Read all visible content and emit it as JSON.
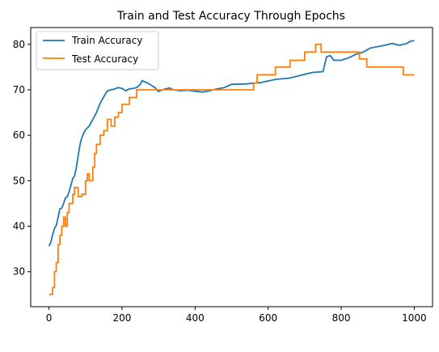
{
  "chart_data": {
    "type": "line",
    "title": "Train and Test Accuracy Through Epochs",
    "xlabel": "",
    "ylabel": "",
    "xlim": [
      -50,
      1050
    ],
    "ylim": [
      22.3,
      83.7
    ],
    "xticks": [
      0,
      200,
      400,
      600,
      800,
      1000
    ],
    "yticks": [
      30,
      40,
      50,
      60,
      70,
      80
    ],
    "grid": false,
    "legend": {
      "position": "top-left"
    },
    "series": [
      {
        "name": "Train Accuracy",
        "color": "#1f77b4",
        "step": false,
        "points": [
          [
            0,
            35.6
          ],
          [
            5,
            36.5
          ],
          [
            10,
            38.2
          ],
          [
            15,
            39.5
          ],
          [
            20,
            40.2
          ],
          [
            25,
            42
          ],
          [
            30,
            43.8
          ],
          [
            35,
            44
          ],
          [
            40,
            45
          ],
          [
            45,
            46.2
          ],
          [
            50,
            46.5
          ],
          [
            55,
            47.5
          ],
          [
            60,
            49
          ],
          [
            65,
            50.5
          ],
          [
            70,
            51
          ],
          [
            75,
            53
          ],
          [
            80,
            55.5
          ],
          [
            85,
            58
          ],
          [
            90,
            59.5
          ],
          [
            95,
            60.5
          ],
          [
            100,
            61.2
          ],
          [
            110,
            62
          ],
          [
            120,
            63.5
          ],
          [
            130,
            65
          ],
          [
            140,
            67
          ],
          [
            150,
            68.5
          ],
          [
            160,
            69.8
          ],
          [
            170,
            70
          ],
          [
            180,
            70.2
          ],
          [
            190,
            70.5
          ],
          [
            200,
            70.3
          ],
          [
            210,
            69.8
          ],
          [
            220,
            70.2
          ],
          [
            230,
            70.3
          ],
          [
            240,
            70.5
          ],
          [
            250,
            71.2
          ],
          [
            255,
            72
          ],
          [
            260,
            71.8
          ],
          [
            270,
            71.5
          ],
          [
            280,
            71
          ],
          [
            290,
            70.5
          ],
          [
            300,
            69.6
          ],
          [
            310,
            70
          ],
          [
            320,
            70.2
          ],
          [
            330,
            70.4
          ],
          [
            340,
            70
          ],
          [
            360,
            69.8
          ],
          [
            380,
            69.9
          ],
          [
            400,
            69.7
          ],
          [
            420,
            69.5
          ],
          [
            440,
            69.8
          ],
          [
            460,
            70.2
          ],
          [
            480,
            70.5
          ],
          [
            500,
            71.2
          ],
          [
            540,
            71.3
          ],
          [
            580,
            71.6
          ],
          [
            620,
            72.3
          ],
          [
            660,
            72.6
          ],
          [
            690,
            73.2
          ],
          [
            720,
            73.8
          ],
          [
            750,
            74
          ],
          [
            760,
            77.3
          ],
          [
            770,
            77.5
          ],
          [
            780,
            76.5
          ],
          [
            800,
            76.5
          ],
          [
            820,
            77
          ],
          [
            840,
            77.8
          ],
          [
            860,
            78.3
          ],
          [
            880,
            79.2
          ],
          [
            900,
            79.5
          ],
          [
            920,
            79.8
          ],
          [
            940,
            80.2
          ],
          [
            960,
            79.8
          ],
          [
            980,
            80.2
          ],
          [
            990,
            80.7
          ],
          [
            1000,
            80.8
          ]
        ]
      },
      {
        "name": "Test Accuracy",
        "color": "#ff7f0e",
        "step": true,
        "points": [
          [
            0,
            25
          ],
          [
            10,
            26.5
          ],
          [
            15,
            30
          ],
          [
            20,
            32
          ],
          [
            25,
            36
          ],
          [
            30,
            38
          ],
          [
            35,
            40
          ],
          [
            40,
            42
          ],
          [
            45,
            40
          ],
          [
            50,
            43
          ],
          [
            55,
            45
          ],
          [
            65,
            47
          ],
          [
            70,
            48.5
          ],
          [
            80,
            46.5
          ],
          [
            90,
            47
          ],
          [
            100,
            50
          ],
          [
            105,
            51.5
          ],
          [
            110,
            50
          ],
          [
            120,
            53
          ],
          [
            125,
            56
          ],
          [
            130,
            58
          ],
          [
            140,
            60
          ],
          [
            150,
            61
          ],
          [
            160,
            63.5
          ],
          [
            170,
            62
          ],
          [
            180,
            64
          ],
          [
            190,
            65
          ],
          [
            200,
            66.8
          ],
          [
            220,
            68.3
          ],
          [
            240,
            70
          ],
          [
            560,
            71.5
          ],
          [
            570,
            73.3
          ],
          [
            620,
            75
          ],
          [
            660,
            76.5
          ],
          [
            700,
            78.3
          ],
          [
            730,
            80
          ],
          [
            745,
            78.3
          ],
          [
            850,
            76.8
          ],
          [
            870,
            75
          ],
          [
            970,
            73.3
          ],
          [
            1000,
            73.3
          ]
        ]
      }
    ]
  }
}
